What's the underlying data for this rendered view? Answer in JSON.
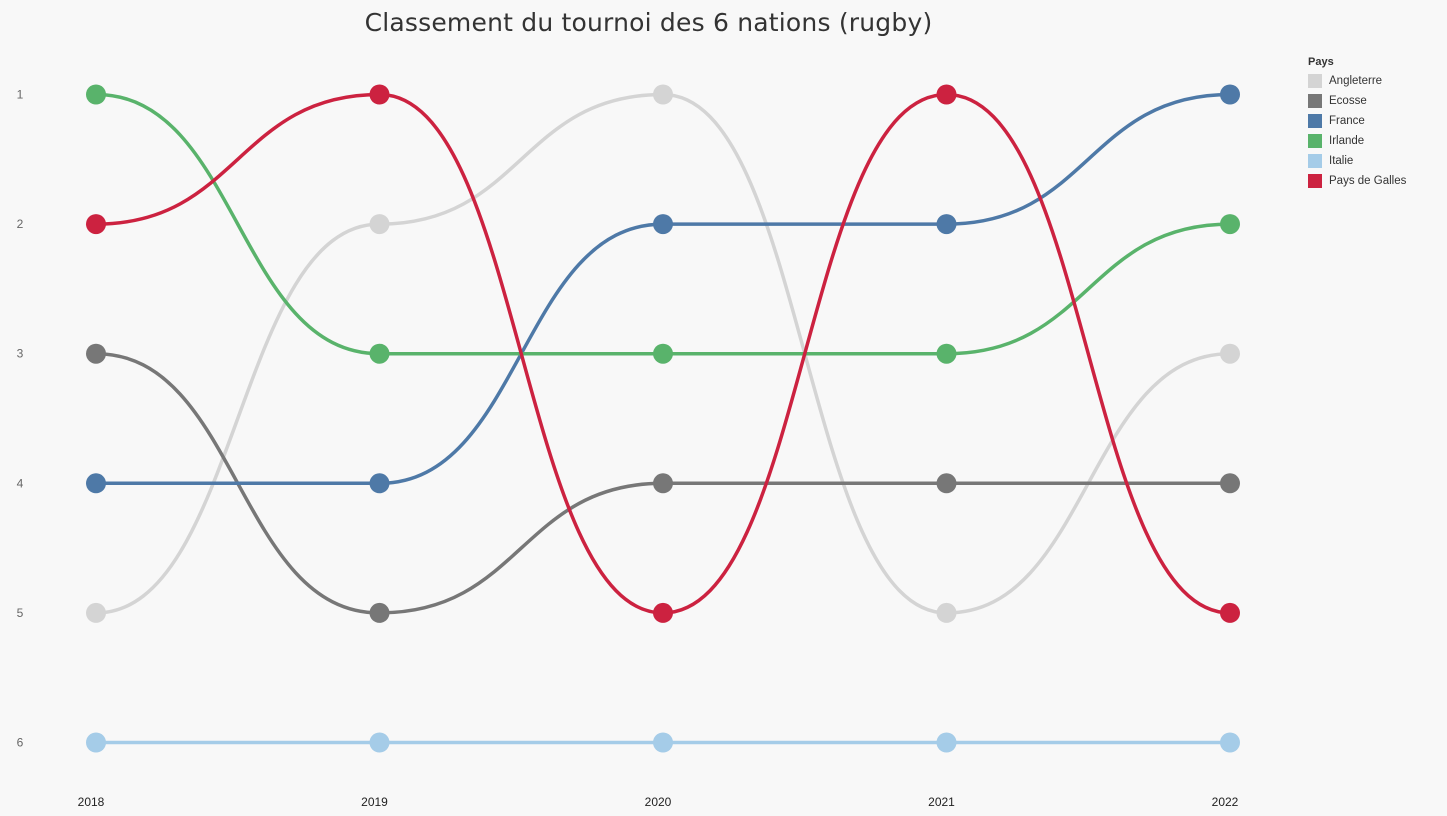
{
  "chart_data": {
    "type": "line",
    "title": "Classement du tournoi des 6 nations (rugby)",
    "xlabel": "",
    "ylabel": "",
    "x": [
      "2018",
      "2019",
      "2020",
      "2021",
      "2022"
    ],
    "y_ticks": [
      "1",
      "2",
      "3",
      "4",
      "5",
      "6"
    ],
    "ylim": [
      1,
      6
    ],
    "y_reversed": true,
    "grid": false,
    "legend_title": "Pays",
    "legend_position": "right",
    "series": [
      {
        "name": "Angleterre",
        "color": "#d4d4d4",
        "values": [
          5,
          2,
          1,
          5,
          3
        ]
      },
      {
        "name": "Ecosse",
        "color": "#777777",
        "values": [
          3,
          5,
          4,
          4,
          4
        ]
      },
      {
        "name": "France",
        "color": "#4e79a7",
        "values": [
          4,
          4,
          2,
          2,
          1
        ]
      },
      {
        "name": "Irlande",
        "color": "#59b36b",
        "values": [
          1,
          3,
          3,
          3,
          2
        ]
      },
      {
        "name": "Italie",
        "color": "#a5cce8",
        "values": [
          6,
          6,
          6,
          6,
          6
        ]
      },
      {
        "name": "Pays de Galles",
        "color": "#cc2240",
        "values": [
          2,
          1,
          5,
          1,
          5
        ]
      }
    ]
  }
}
